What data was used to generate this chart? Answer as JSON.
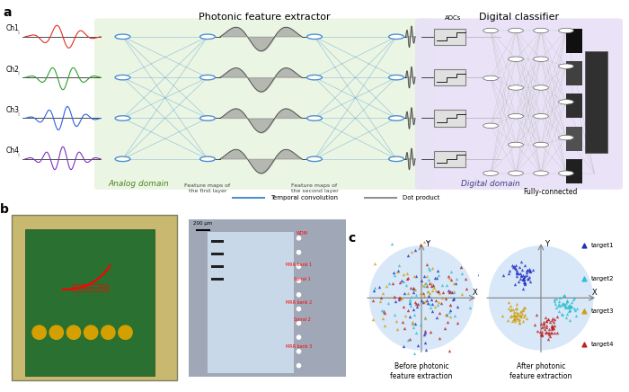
{
  "panel_a": {
    "title": "Photonic feature extractor",
    "digital_title": "Digital classifier",
    "ch_labels": [
      "Ch1",
      "Ch2",
      "Ch3",
      "Ch4"
    ],
    "ch_colors": [
      "#e03020",
      "#30a030",
      "#3060e0",
      "#8030c0"
    ],
    "analog_domain_label": "Analog domain",
    "feature_map1_label": "Feature maps of\nthe first layer",
    "feature_map2_label": "Feature maps of\nthe second layer",
    "digital_domain_label": "Digital domain",
    "fully_connected_label": "Fully-connected",
    "adc_label": "ADCs",
    "legend_temporal": "Temporal convolution",
    "legend_dot": "Dot product",
    "green_bg": "#e8f5e0",
    "purple_bg": "#e8e0f8"
  },
  "panel_c": {
    "before_title": "Before photonic\nfeature extraction",
    "after_title": "After photonic\nfeature extraction",
    "legend_labels": [
      "target1",
      "target2",
      "target3",
      "target4"
    ],
    "colors": [
      "#2030c0",
      "#30c0d0",
      "#d0a010",
      "#c02020"
    ],
    "marker": "^"
  }
}
